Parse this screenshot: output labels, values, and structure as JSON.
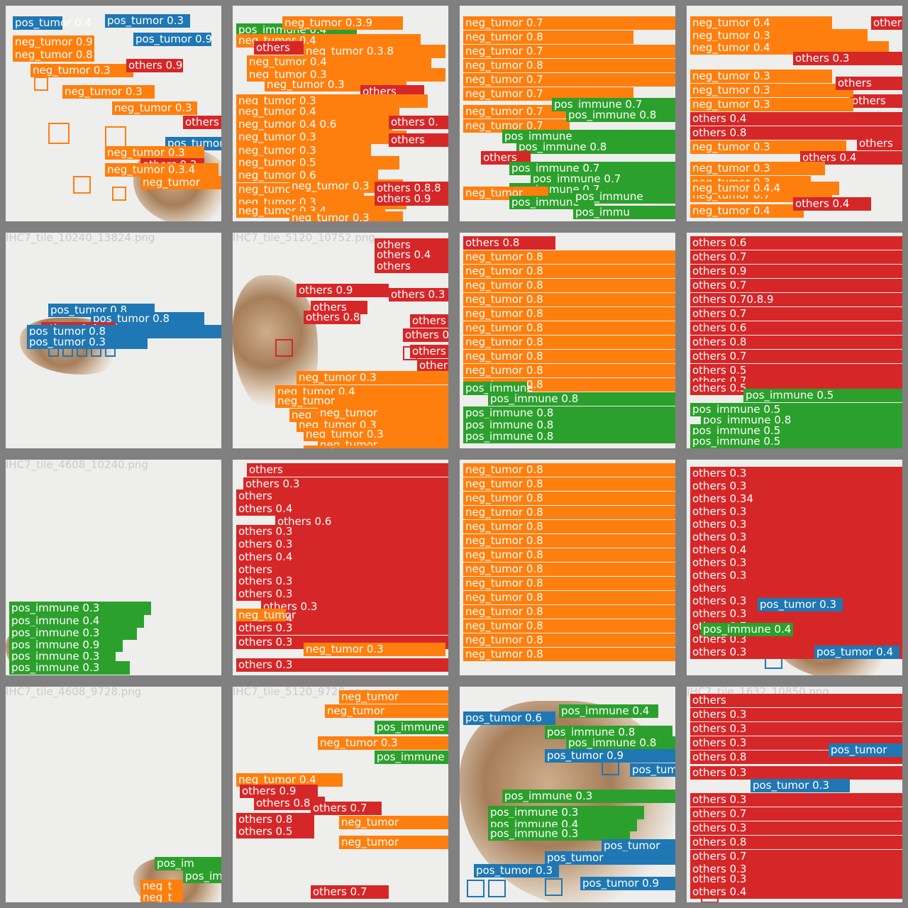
{
  "colors": {
    "neg_tumor": "#ff7f0e",
    "pos_tumor": "#1f77b4",
    "pos_immune": "#2ca02c",
    "others": "#d62728",
    "tile_border": "#808080",
    "background": "#eeeeec"
  },
  "tiles": [
    {
      "filename": "IHC7_tile_10240_13824.png"
    },
    {
      "filename": "IHC7_tile_5120_10752.png"
    },
    {
      "filename": "IHC7_tile_4608_10240.png"
    },
    {
      "filename": "IHC7_tile_4608_9728.png"
    },
    {
      "filename": "IHC7_tile_5120_9728.png"
    },
    {
      "filename": "IHC7_tile_1632_10850.png"
    }
  ],
  "labels": {
    "t00": [
      "pos_tumor 0.4",
      "neg_tumor 0.9",
      "neg_tumor 0.8",
      "neg_tumor 0.3",
      "others 0.9",
      "pos_tumor 0.9",
      "neg_tumor 0.3",
      "neg_tumor 0.3",
      "others 0.4",
      "pos_tumor",
      "neg_tumor 0.3",
      "others 0.3",
      "neg_tumor 0.3.4",
      "neg_tumor",
      "pos_tumor 0.3"
    ],
    "t01": [
      "pos_immune 0.4",
      "neg_tumor 0.3.9",
      "neg_tumor 0.4",
      "neg_tumor 0.3.8",
      "neg_tumor 0.4",
      "neg_tumor 0.3",
      "others",
      "neg_tumor 0.3",
      "others",
      "neg_tumor 0.3",
      "neg_tumor 0.4",
      "neg_tumor 0.4 0.6",
      "others 0.",
      "neg_tumor 0.3",
      "others",
      "neg_tumor 0.3",
      "neg_tumor 0.5",
      "neg_tumor 0.6",
      "neg_tumor 0.4.9",
      "neg_tumor 0.3",
      "neg_tumor 0.3",
      "others 0.8.8",
      "neg_tumor 0.3.4",
      "others 0.9",
      "neg_tumor 0.3"
    ],
    "t02": [
      "neg_tumor 0.7",
      "neg_tumor 0.8",
      "neg_tumor 0.7",
      "neg_tumor 0.8",
      "neg_tumor 0.7",
      "neg_tumor 0.7",
      "neg_tumor 0.7",
      "pos_immune 0.7",
      "neg_tumor 0.7",
      "pos_immune 0.8",
      "pos_immune",
      "pos_immune 0.8",
      "others",
      "pos_immune 0.7",
      "pos_immune 0.7",
      "pos_immune 0.7",
      "neg_tumor",
      "pos_immune",
      "pos_immune",
      "pos_immu"
    ],
    "t03": [
      "neg_tumor 0.4",
      "neg_tumor 0.3",
      "neg_tumor 0.4",
      "others 0.3",
      "others 0.3",
      "others",
      "neg_tumor 0.3",
      "neg_tumor 0.3",
      "others",
      "neg_tumor 0.3",
      "others 0.4",
      "others 0.8",
      "neg_tumor 0.3",
      "others 0.4",
      "neg_tumor 0.3",
      "others",
      "neg_tumor 0.3",
      "neg_tumor 0.7",
      "neg_tumor 0.4.4",
      "neg_tumor 0.4",
      "others 0.4"
    ],
    "t10": [
      "pos_tumor 0.8",
      "pos_tumor 0.8",
      "others 0.4",
      "pos_tumor 0.8",
      "pos_tumor 0.3"
    ],
    "t11": [
      "others",
      "others 0.4",
      "others",
      "others 0.9",
      "others 0.3",
      "others",
      "others 0.8",
      "others",
      "others 0",
      "others",
      "others",
      "neg_tumor 0.3",
      "neg_tumor 0.4",
      "neg_tumor",
      "neg_tumor 0.3",
      "neg_tumor 0.3",
      "neg_tumor",
      "neg_tumor 0.3",
      "neg_tumor",
      "neg_tumor"
    ],
    "t12": [
      "others 0.8",
      "neg_tumor 0.8",
      "neg_tumor 0.8",
      "neg_tumor 0.8",
      "neg_tumor 0.8",
      "neg_tumor 0.8",
      "neg_tumor 0.8",
      "neg_tumor 0.8",
      "neg_tumor 0.8",
      "neg_tumor 0.8",
      "neg_tumor 0.8",
      "pos_immune",
      "pos_immune 0.8",
      "pos_immune 0.8",
      "pos_immune 0.8",
      "pos_immune 0.8"
    ],
    "t13": [
      "others 0.6",
      "others 0.7",
      "others 0.9",
      "others 0.7",
      "others 0.70.8.9",
      "others 0.7",
      "others 0.6",
      "others 0.8",
      "others 0.7",
      "others 0.5",
      "others 0.7",
      "others 0.5",
      "pos_immune 0.5",
      "pos_immune 0.5",
      "pos_immune 0.8",
      "pos_immune 0.5",
      "pos_immune 0.5"
    ],
    "t20": [
      "pos_immune 0.3",
      "pos_immune 0.4",
      "pos_immune 0.3",
      "pos_immune 0.9",
      "pos_immune 0.3",
      "pos_immune 0.3"
    ],
    "t21": [
      "others",
      "others 0.3",
      "others",
      "others 0.4",
      "others 0.6",
      "others 0.3",
      "others 0.3",
      "others 0.4",
      "others",
      "others 0.3",
      "others 0.3",
      "others 0.3",
      "others 0.4",
      "neg_tumor",
      "others 0.3",
      "others 0.3",
      "neg_tumor 0.3",
      "others 0.3"
    ],
    "t22": [
      "neg_tumor 0.8",
      "neg_tumor 0.8",
      "neg_tumor 0.8",
      "neg_tumor 0.8",
      "neg_tumor 0.8",
      "neg_tumor 0.8",
      "neg_tumor 0.8",
      "neg_tumor 0.8",
      "neg_tumor 0.8",
      "neg_tumor 0.8",
      "neg_tumor 0.8",
      "neg_tumor 0.8",
      "neg_tumor 0.8",
      "neg_tumor 0.8"
    ],
    "t23": [
      "others 0.3",
      "others 0.3",
      "others 0.34",
      "others 0.3",
      "others 0.3",
      "others 0.3",
      "others 0.4",
      "others 0.3",
      "others 0.3",
      "others",
      "others 0.3",
      "others 0.3",
      "others 0.7",
      "others 0.3",
      "pos_immune 0.4",
      "others 0.3",
      "pos_tumor 0.3",
      "pos_tumor 0.4"
    ],
    "t30": [
      "pos_im",
      "pos_im",
      "neg_t",
      "neg_t"
    ],
    "t31": [
      "neg_tumor",
      "neg_tumor",
      "pos_immune",
      "neg_tumor 0.3",
      "pos_immune",
      "neg_tumor 0.4",
      "others 0.9",
      "others 0.8",
      "others 0.7",
      "others 0.8",
      "others 0.5",
      "neg_tumor",
      "neg_tumor",
      "others 0.7"
    ],
    "t32": [
      "pos_immune 0.4",
      "pos_tumor 0.6",
      "pos_immune 0.8",
      "pos_immune 0.8",
      "pos_tumor 0.9",
      "pos_tumor",
      "pos_immune 0.3",
      "pos_immune 0.3",
      "pos_immune 0.4",
      "pos_immune 0.3",
      "pos_tumor",
      "pos_tumor",
      "pos_tumor 0.3",
      "pos_tumor 0.9"
    ],
    "t33": [
      "others",
      "others 0.3",
      "others 0.3",
      "others 0.3",
      "others 0.8",
      "pos_tumor",
      "others 0.3",
      "pos_tumor 0.3",
      "others 0.3",
      "others 0.7",
      "others 0.3",
      "others 0.8",
      "others 0.7",
      "others 0.3",
      "others 0.3",
      "others 0.4"
    ]
  }
}
